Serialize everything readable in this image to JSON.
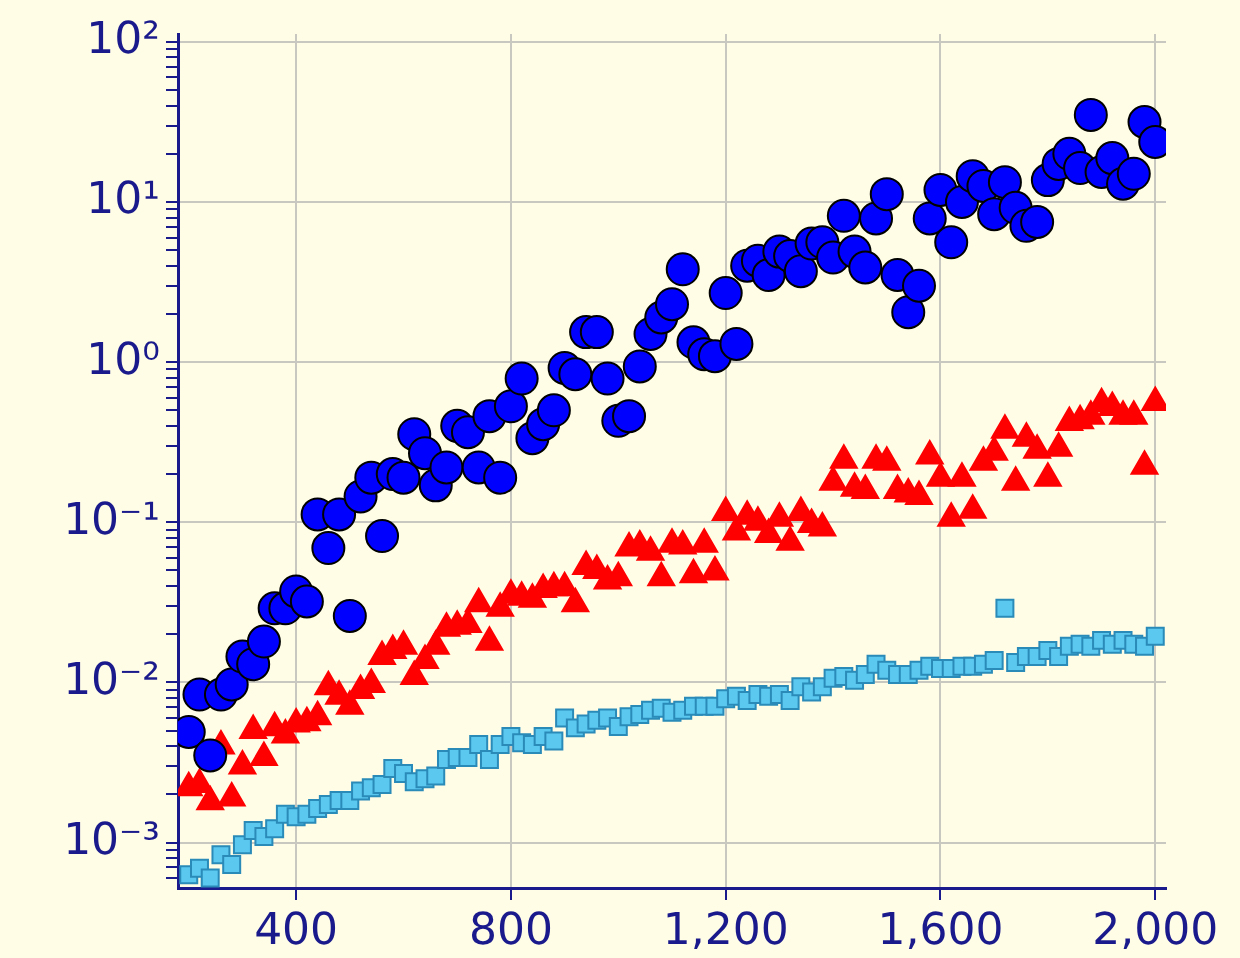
{
  "chart_data": {
    "type": "scatter",
    "x": [
      200,
      220,
      240,
      260,
      280,
      300,
      320,
      340,
      360,
      380,
      400,
      420,
      440,
      460,
      480,
      500,
      520,
      540,
      560,
      580,
      600,
      620,
      640,
      660,
      680,
      700,
      720,
      740,
      760,
      780,
      800,
      820,
      840,
      860,
      880,
      900,
      920,
      940,
      960,
      980,
      1000,
      1020,
      1040,
      1060,
      1080,
      1100,
      1120,
      1140,
      1160,
      1180,
      1200,
      1220,
      1240,
      1260,
      1280,
      1300,
      1320,
      1340,
      1360,
      1380,
      1400,
      1420,
      1440,
      1460,
      1480,
      1500,
      1520,
      1540,
      1560,
      1580,
      1600,
      1620,
      1640,
      1660,
      1680,
      1700,
      1720,
      1740,
      1760,
      1780,
      1800,
      1820,
      1840,
      1860,
      1880,
      1900,
      1920,
      1940,
      1960,
      1980,
      2000
    ],
    "series": [
      {
        "color": "#0000ff",
        "marker": "circle",
        "values": [
          0.0049,
          0.0084,
          0.0035,
          0.0084,
          0.0097,
          0.0145,
          0.013,
          0.018,
          0.029,
          0.029,
          0.037,
          0.032,
          0.112,
          0.069,
          0.112,
          0.026,
          0.145,
          0.19,
          0.082,
          0.2,
          0.19,
          0.355,
          0.27,
          0.17,
          0.22,
          0.4,
          0.365,
          0.22,
          0.46,
          0.19,
          0.53,
          0.79,
          0.335,
          0.41,
          0.5,
          0.92,
          0.84,
          1.54,
          1.54,
          0.79,
          0.43,
          0.46,
          0.94,
          1.5,
          1.9,
          2.3,
          3.8,
          1.33,
          1.12,
          1.09,
          2.7,
          1.3,
          4.0,
          4.3,
          3.5,
          4.9,
          4.6,
          3.7,
          5.5,
          5.6,
          4.5,
          8.2,
          4.9,
          3.9,
          7.9,
          11.2,
          3.5,
          2.05,
          3.0,
          7.9,
          11.9,
          5.6,
          10,
          14.5,
          12.6,
          8.4,
          13.3,
          9.2,
          7.1,
          7.5,
          13.7,
          17.3,
          20,
          16.3,
          35,
          15.4,
          18.8,
          13,
          15,
          31.6,
          23.7
        ]
      },
      {
        "color": "#ff0000",
        "marker": "triangle",
        "values": [
          0.0022,
          0.0023,
          0.0018,
          0.004,
          0.0019,
          0.003,
          0.005,
          0.0034,
          0.0052,
          0.0047,
          0.0055,
          0.0056,
          0.0061,
          0.0094,
          0.0082,
          0.0071,
          0.0089,
          0.0097,
          0.0145,
          0.0158,
          0.0168,
          0.0109,
          0.0137,
          0.0168,
          0.0218,
          0.0224,
          0.023,
          0.031,
          0.0178,
          0.029,
          0.035,
          0.034,
          0.033,
          0.038,
          0.039,
          0.039,
          0.031,
          0.053,
          0.05,
          0.043,
          0.045,
          0.069,
          0.071,
          0.065,
          0.045,
          0.073,
          0.071,
          0.047,
          0.073,
          0.049,
          0.115,
          0.087,
          0.109,
          0.1,
          0.084,
          0.106,
          0.075,
          0.115,
          0.097,
          0.092,
          0.178,
          0.244,
          0.163,
          0.158,
          0.244,
          0.237,
          0.158,
          0.15,
          0.145,
          0.259,
          0.188,
          0.106,
          0.188,
          0.119,
          0.237,
          0.274,
          0.376,
          0.178,
          0.335,
          0.282,
          0.188,
          0.29,
          0.42,
          0.43,
          0.46,
          0.55,
          0.52,
          0.46,
          0.46,
          0.224,
          0.56
        ]
      },
      {
        "color": "#5bc8f0",
        "marker": "square",
        "values": [
          0.00063,
          0.00069,
          0.0006,
          0.00084,
          0.00073,
          0.00097,
          0.00119,
          0.00109,
          0.00122,
          0.0015,
          0.00145,
          0.0015,
          0.00163,
          0.00173,
          0.00183,
          0.00183,
          0.0021,
          0.0022,
          0.0023,
          0.0029,
          0.0027,
          0.0024,
          0.0025,
          0.0026,
          0.0033,
          0.0034,
          0.0034,
          0.0041,
          0.0033,
          0.0041,
          0.0046,
          0.0042,
          0.0041,
          0.0046,
          0.0043,
          0.006,
          0.0052,
          0.0055,
          0.0058,
          0.006,
          0.0053,
          0.0061,
          0.0063,
          0.0067,
          0.0069,
          0.0065,
          0.0067,
          0.0071,
          0.0071,
          0.0071,
          0.0079,
          0.0082,
          0.0077,
          0.0084,
          0.0082,
          0.0084,
          0.0077,
          0.0094,
          0.0087,
          0.0094,
          0.0106,
          0.0109,
          0.0103,
          0.0112,
          0.013,
          0.0119,
          0.0112,
          0.0112,
          0.0119,
          0.0126,
          0.0122,
          0.0122,
          0.0126,
          0.0126,
          0.013,
          0.0137,
          0.029,
          0.0133,
          0.0145,
          0.0145,
          0.0158,
          0.0145,
          0.0168,
          0.0173,
          0.0168,
          0.0183,
          0.0173,
          0.0183,
          0.0173,
          0.0168,
          0.0194
        ]
      }
    ],
    "xlim": [
      180,
      2020
    ],
    "xticks": [
      400,
      800,
      {
        "value": 1200,
        "label": "1,200"
      },
      {
        "value": 1600,
        "label": "1,600"
      },
      {
        "value": 2000,
        "label": "2,000"
      }
    ],
    "ylim": [
      0.00052,
      112
    ],
    "yticks": [
      {
        "value": 0.0006,
        "label": null
      },
      {
        "value": 0.0007,
        "label": null
      },
      {
        "value": 0.0008,
        "label": null
      },
      {
        "value": 0.0009,
        "label": null
      },
      {
        "value": 0.001,
        "label": "10⁻³"
      },
      {
        "value": 0.002,
        "label": null
      },
      {
        "value": 0.003,
        "label": null
      },
      {
        "value": 0.004,
        "label": null
      },
      {
        "value": 0.005,
        "label": null
      },
      {
        "value": 0.006,
        "label": null
      },
      {
        "value": 0.007,
        "label": null
      },
      {
        "value": 0.008,
        "label": null
      },
      {
        "value": 0.009,
        "label": null
      },
      {
        "value": 0.01,
        "label": "10⁻²"
      },
      {
        "value": 0.02,
        "label": null
      },
      {
        "value": 0.03,
        "label": null
      },
      {
        "value": 0.04,
        "label": null
      },
      {
        "value": 0.05,
        "label": null
      },
      {
        "value": 0.06,
        "label": null
      },
      {
        "value": 0.07,
        "label": null
      },
      {
        "value": 0.08,
        "label": null
      },
      {
        "value": 0.09,
        "label": null
      },
      {
        "value": 0.1,
        "label": "10⁻¹"
      },
      {
        "value": 0.2,
        "label": null
      },
      {
        "value": 0.3,
        "label": null
      },
      {
        "value": 0.4,
        "label": null
      },
      {
        "value": 0.5,
        "label": null
      },
      {
        "value": 0.6,
        "label": null
      },
      {
        "value": 0.7,
        "label": null
      },
      {
        "value": 0.8,
        "label": null
      },
      {
        "value": 0.9,
        "label": null
      },
      {
        "value": 1,
        "label": "10⁰"
      },
      {
        "value": 2,
        "label": null
      },
      {
        "value": 3,
        "label": null
      },
      {
        "value": 4,
        "label": null
      },
      {
        "value": 5,
        "label": null
      },
      {
        "value": 6,
        "label": null
      },
      {
        "value": 7,
        "label": null
      },
      {
        "value": 8,
        "label": null
      },
      {
        "value": 9,
        "label": null
      },
      {
        "value": 10,
        "label": "10¹"
      },
      {
        "value": 20,
        "label": null
      },
      {
        "value": 30,
        "label": null
      },
      {
        "value": 40,
        "label": null
      },
      {
        "value": 50,
        "label": null
      },
      {
        "value": 60,
        "label": null
      },
      {
        "value": 70,
        "label": null
      },
      {
        "value": 80,
        "label": null
      },
      {
        "value": 90,
        "label": null
      },
      {
        "value": 100,
        "label": "10²"
      }
    ],
    "log": true,
    "grid": true
  }
}
